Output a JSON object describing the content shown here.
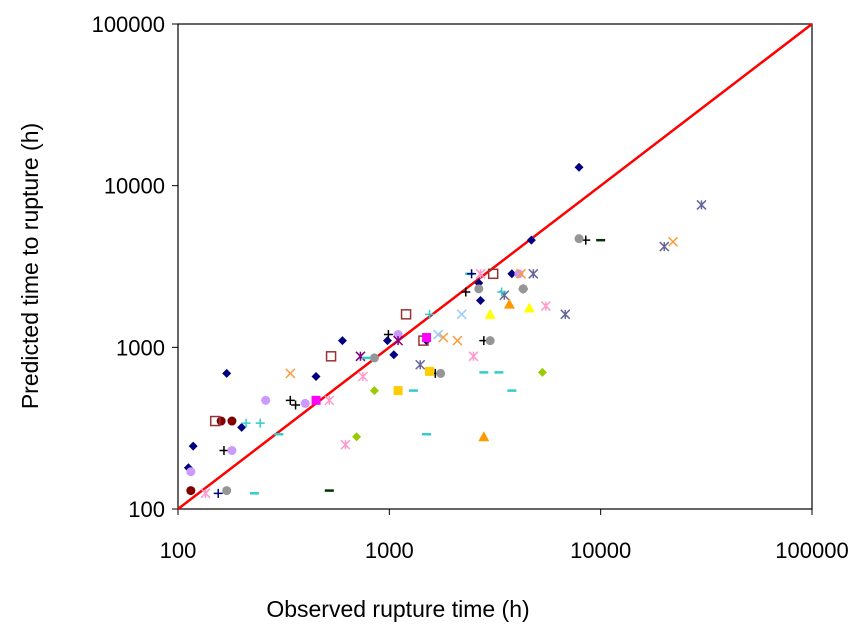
{
  "chart_data": {
    "type": "scatter",
    "xlabel": "Observed rupture time (h)",
    "ylabel": "Predicted time to rupture (h)",
    "xscale": "log",
    "yscale": "log",
    "xlim": [
      100,
      100000
    ],
    "ylim": [
      100,
      100000
    ],
    "grid": false,
    "legend": "none",
    "x_ticks": [
      "100",
      "1000",
      "10000",
      "100000"
    ],
    "y_ticks": [
      "100",
      "1000",
      "10000",
      "100000"
    ],
    "reference_line": {
      "from": [
        100,
        100
      ],
      "to": [
        100000,
        100000
      ],
      "color": "#ff0000"
    },
    "series": [
      {
        "marker": "diamond",
        "color": "#000080",
        "points": [
          [
            112,
            180
          ],
          [
            118,
            245
          ],
          [
            170,
            690
          ],
          [
            200,
            320
          ],
          [
            260,
            470
          ],
          [
            450,
            660
          ],
          [
            600,
            1100
          ],
          [
            980,
            1100
          ],
          [
            1050,
            900
          ],
          [
            1500,
            1100
          ],
          [
            2700,
            1950
          ],
          [
            4700,
            4600
          ],
          [
            3800,
            2850
          ],
          [
            7900,
            13000
          ],
          [
            2650,
            2500
          ]
        ]
      },
      {
        "marker": "plus",
        "color": "#000000",
        "points": [
          [
            165,
            230
          ],
          [
            340,
            470
          ],
          [
            360,
            440
          ],
          [
            990,
            1200
          ],
          [
            2300,
            2200
          ],
          [
            2800,
            1100
          ],
          [
            1650,
            690
          ],
          [
            4300,
            2300
          ],
          [
            8500,
            4600
          ]
        ]
      },
      {
        "marker": "circle",
        "color": "#800000",
        "points": [
          [
            115,
            130
          ],
          [
            160,
            350
          ],
          [
            180,
            350
          ]
        ]
      },
      {
        "marker": "circle",
        "color": "#cc99ff",
        "points": [
          [
            115,
            170
          ],
          [
            180,
            230
          ],
          [
            260,
            470
          ],
          [
            400,
            450
          ],
          [
            1100,
            1200
          ],
          [
            4100,
            2850
          ]
        ]
      },
      {
        "marker": "circle",
        "color": "#969696",
        "points": [
          [
            170,
            130
          ],
          [
            850,
            860
          ],
          [
            1750,
            690
          ],
          [
            2650,
            2300
          ],
          [
            3000,
            1100
          ],
          [
            4300,
            2300
          ],
          [
            7900,
            4700
          ]
        ]
      },
      {
        "marker": "square-open",
        "color": "#993333",
        "points": [
          [
            150,
            350
          ],
          [
            530,
            880
          ],
          [
            1200,
            1600
          ],
          [
            1450,
            1100
          ],
          [
            3100,
            2850
          ]
        ]
      },
      {
        "marker": "square",
        "color": "#ff00ff",
        "points": [
          [
            450,
            470
          ],
          [
            1500,
            1150
          ]
        ]
      },
      {
        "marker": "square",
        "color": "#ffcc00",
        "points": [
          [
            1100,
            540
          ],
          [
            1550,
            710
          ]
        ]
      },
      {
        "marker": "star",
        "color": "#ff99cc",
        "points": [
          [
            135,
            125
          ],
          [
            520,
            470
          ],
          [
            620,
            250
          ],
          [
            750,
            660
          ],
          [
            2500,
            880
          ],
          [
            2700,
            2850
          ],
          [
            5500,
            1800
          ]
        ]
      },
      {
        "marker": "star",
        "color": "#800080",
        "points": [
          [
            730,
            880
          ],
          [
            1100,
            1100
          ]
        ]
      },
      {
        "marker": "star",
        "color": "#666699",
        "points": [
          [
            1400,
            780
          ],
          [
            3500,
            2100
          ],
          [
            4800,
            2850
          ],
          [
            6800,
            1600
          ],
          [
            20000,
            4200
          ],
          [
            30000,
            7600
          ]
        ]
      },
      {
        "marker": "x",
        "color": "#ff9933",
        "points": [
          [
            340,
            690
          ],
          [
            1800,
            1150
          ],
          [
            2100,
            1100
          ],
          [
            4200,
            2850
          ],
          [
            22000,
            4500
          ]
        ]
      },
      {
        "marker": "x",
        "color": "#99ccff",
        "points": [
          [
            1700,
            1200
          ],
          [
            2200,
            1600
          ]
        ]
      },
      {
        "marker": "triangle",
        "color": "#ffff00",
        "points": [
          [
            3000,
            1600
          ],
          [
            4600,
            1750
          ]
        ]
      },
      {
        "marker": "triangle",
        "color": "#ff9900",
        "points": [
          [
            2800,
            280
          ],
          [
            3700,
            1850
          ]
        ]
      },
      {
        "marker": "diamond",
        "color": "#99cc00",
        "points": [
          [
            700,
            280
          ],
          [
            850,
            540
          ],
          [
            5300,
            700
          ]
        ]
      },
      {
        "marker": "dash",
        "color": "#33cccc",
        "points": [
          [
            230,
            125
          ],
          [
            300,
            290
          ],
          [
            780,
            860
          ],
          [
            1300,
            540
          ],
          [
            1500,
            290
          ],
          [
            2800,
            700
          ],
          [
            3300,
            700
          ],
          [
            3800,
            540
          ],
          [
            2400,
            2850
          ]
        ]
      },
      {
        "marker": "dash",
        "color": "#003300",
        "points": [
          [
            520,
            130
          ],
          [
            10000,
            4600
          ]
        ]
      },
      {
        "marker": "plus",
        "color": "#33cccc",
        "points": [
          [
            210,
            340
          ],
          [
            245,
            340
          ],
          [
            1550,
            1600
          ],
          [
            3400,
            2200
          ]
        ]
      },
      {
        "marker": "plus",
        "color": "#000080",
        "points": [
          [
            155,
            125
          ],
          [
            2450,
            2850
          ]
        ]
      }
    ]
  }
}
